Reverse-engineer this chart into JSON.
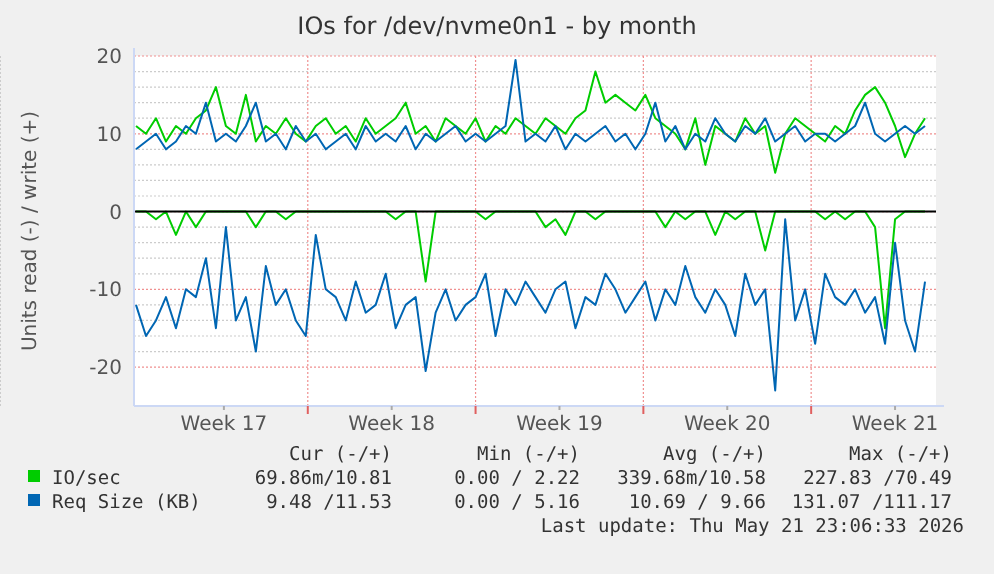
{
  "chart_data": {
    "type": "line",
    "title": "IOs for /dev/nvme0n1 - by month",
    "ylabel": "Units read (-) / write (+)",
    "xlim": [
      "2026-04-19T18:00:00",
      "2026-05-23T05:00:00"
    ],
    "ylim": [
      -25,
      20
    ],
    "xticks": [
      {
        "value": "2026-04-23T12:00:00",
        "label": "Week 17"
      },
      {
        "value": "2026-04-27T00:00:00",
        "label": null
      },
      {
        "value": "2026-04-30T12:00:00",
        "label": "Week 18"
      },
      {
        "value": "2026-05-04T00:00:00",
        "label": null
      },
      {
        "value": "2026-05-07T12:00:00",
        "label": "Week 19"
      },
      {
        "value": "2026-05-11T00:00:00",
        "label": null
      },
      {
        "value": "2026-05-14T12:00:00",
        "label": "Week 20"
      },
      {
        "value": "2026-05-18T00:00:00",
        "label": null
      },
      {
        "value": "2026-05-21T12:00:00",
        "label": "Week 21"
      }
    ],
    "yticks": [
      -20,
      -10,
      0,
      10,
      20
    ],
    "grid": true,
    "legend": "bottom",
    "ref_lines": [
      {
        "axis": "y",
        "value": 0,
        "color": "#000000"
      }
    ],
    "x": [
      "2026-04-19T20:00:00",
      "2026-04-20T06:00:00",
      "2026-04-20T16:00:00",
      "2026-04-21T02:00:00",
      "2026-04-21T12:00:00",
      "2026-04-21T22:00:00",
      "2026-04-22T08:00:00",
      "2026-04-22T18:00:00",
      "2026-04-23T04:00:00",
      "2026-04-23T14:00:00",
      "2026-04-24T00:00:00",
      "2026-04-24T10:00:00",
      "2026-04-24T20:00:00",
      "2026-04-25T06:00:00",
      "2026-04-25T16:00:00",
      "2026-04-26T02:00:00",
      "2026-04-26T12:00:00",
      "2026-04-26T22:00:00",
      "2026-04-27T08:00:00",
      "2026-04-27T18:00:00",
      "2026-04-28T04:00:00",
      "2026-04-28T14:00:00",
      "2026-04-29T00:00:00",
      "2026-04-29T10:00:00",
      "2026-04-29T20:00:00",
      "2026-04-30T06:00:00",
      "2026-04-30T16:00:00",
      "2026-05-01T02:00:00",
      "2026-05-01T12:00:00",
      "2026-05-01T22:00:00",
      "2026-05-02T08:00:00",
      "2026-05-02T18:00:00",
      "2026-05-03T04:00:00",
      "2026-05-03T14:00:00",
      "2026-05-04T00:00:00",
      "2026-05-04T10:00:00",
      "2026-05-04T20:00:00",
      "2026-05-05T06:00:00",
      "2026-05-05T16:00:00",
      "2026-05-06T02:00:00",
      "2026-05-06T12:00:00",
      "2026-05-06T22:00:00",
      "2026-05-07T08:00:00",
      "2026-05-07T18:00:00",
      "2026-05-08T04:00:00",
      "2026-05-08T14:00:00",
      "2026-05-09T00:00:00",
      "2026-05-09T10:00:00",
      "2026-05-09T20:00:00",
      "2026-05-10T06:00:00",
      "2026-05-10T16:00:00",
      "2026-05-11T02:00:00",
      "2026-05-11T12:00:00",
      "2026-05-11T22:00:00",
      "2026-05-12T08:00:00",
      "2026-05-12T18:00:00",
      "2026-05-13T04:00:00",
      "2026-05-13T14:00:00",
      "2026-05-14T00:00:00",
      "2026-05-14T10:00:00",
      "2026-05-14T20:00:00",
      "2026-05-15T06:00:00",
      "2026-05-15T16:00:00",
      "2026-05-16T02:00:00",
      "2026-05-16T12:00:00",
      "2026-05-16T22:00:00",
      "2026-05-17T08:00:00",
      "2026-05-17T18:00:00",
      "2026-05-18T04:00:00",
      "2026-05-18T14:00:00",
      "2026-05-19T00:00:00",
      "2026-05-19T10:00:00",
      "2026-05-19T20:00:00",
      "2026-05-20T06:00:00",
      "2026-05-20T16:00:00",
      "2026-05-21T02:00:00",
      "2026-05-21T12:00:00",
      "2026-05-21T22:00:00",
      "2026-05-22T08:00:00",
      "2026-05-22T18:00:00"
    ],
    "series": [
      {
        "name": "IO/sec",
        "color": "#00cc00",
        "values": [
          11,
          10,
          12,
          9,
          11,
          10,
          12,
          13,
          16,
          11,
          10,
          15,
          9,
          11,
          10,
          12,
          10,
          9,
          11,
          12,
          10,
          11,
          9,
          12,
          10,
          11,
          12,
          14,
          10,
          11,
          9,
          12,
          11,
          10,
          12,
          9,
          11,
          10,
          12,
          11,
          10,
          12,
          11,
          10,
          12,
          13,
          18,
          14,
          15,
          14,
          13,
          15,
          12,
          11,
          10,
          8,
          12,
          6,
          11,
          10,
          9,
          12,
          10,
          11,
          5,
          10,
          12,
          11,
          10,
          9,
          11,
          10,
          13,
          15,
          16,
          14,
          11,
          7,
          10,
          12
        ]
      },
      {
        "name": "Req Size (KB)",
        "color": "#0066b3",
        "values": [
          8,
          9,
          10,
          8,
          9,
          11,
          10,
          14,
          9,
          10,
          9,
          11,
          14,
          9,
          10,
          8,
          11,
          9,
          10,
          8,
          9,
          10,
          8,
          11,
          9,
          10,
          9,
          11,
          8,
          10,
          9,
          10,
          11,
          9,
          10,
          9,
          10,
          11,
          19.5,
          9,
          10,
          9,
          11,
          8,
          10,
          9,
          10,
          11,
          9,
          10,
          8,
          10,
          14,
          9,
          11,
          8,
          10,
          9,
          12,
          10,
          9,
          11,
          10,
          12,
          9,
          10,
          11,
          9,
          10,
          10,
          9,
          10,
          11,
          14,
          10,
          9,
          10,
          11,
          10,
          11
        ]
      },
      {
        "color": "#00cc00",
        "values": [
          0,
          0,
          -1,
          0,
          -3,
          0,
          -2,
          0,
          0,
          0,
          0,
          0,
          -2,
          0,
          0,
          -1,
          0,
          0,
          0,
          0,
          0,
          0,
          0,
          0,
          0,
          0,
          -1,
          0,
          0,
          -9,
          0,
          0,
          0,
          0,
          0,
          -1,
          0,
          0,
          0,
          0,
          0,
          -2,
          -1,
          -3,
          0,
          0,
          -1,
          0,
          0,
          0,
          0,
          0,
          0,
          -2,
          0,
          -1,
          0,
          0,
          -3,
          0,
          -1,
          0,
          0,
          -5,
          0,
          0,
          0,
          0,
          0,
          -1,
          0,
          -1,
          0,
          0,
          -2,
          -15,
          -1,
          0,
          0,
          0
        ]
      },
      {
        "color": "#0066b3",
        "values": [
          -12,
          -16,
          -14,
          -11,
          -15,
          -10,
          -11,
          -6,
          -15,
          -2,
          -14,
          -11,
          -18,
          -7,
          -12,
          -10,
          -14,
          -16,
          -3,
          -10,
          -11,
          -14,
          -9,
          -13,
          -12,
          -8,
          -15,
          -12,
          -11,
          -20.5,
          -13,
          -10,
          -14,
          -12,
          -11,
          -8,
          -16,
          -10,
          -12,
          -9,
          -11,
          -13,
          -10,
          -9,
          -15,
          -11,
          -12,
          -8,
          -10,
          -13,
          -11,
          -9,
          -14,
          -10,
          -12,
          -7,
          -11,
          -13,
          -10,
          -12,
          -16,
          -8,
          -12,
          -10,
          -23,
          -1,
          -14,
          -10,
          -17,
          -8,
          -11,
          -12,
          -10,
          -13,
          -11,
          -17,
          -4,
          -14,
          -18,
          -9
        ]
      }
    ],
    "annotations": [
      "Cur (-/+)",
      "Min (-/+)",
      "Avg (-/+)",
      "Max (-/+)",
      "69.86m/10.81",
      "0.00 / 2.22",
      "339.68m/10.58",
      "227.83 /70.49",
      "9.48 /11.53",
      "0.00 / 5.16",
      "10.69 / 9.66",
      "131.07 /111.17",
      "Last update: Thu May 21 23:06:33 2026"
    ]
  }
}
